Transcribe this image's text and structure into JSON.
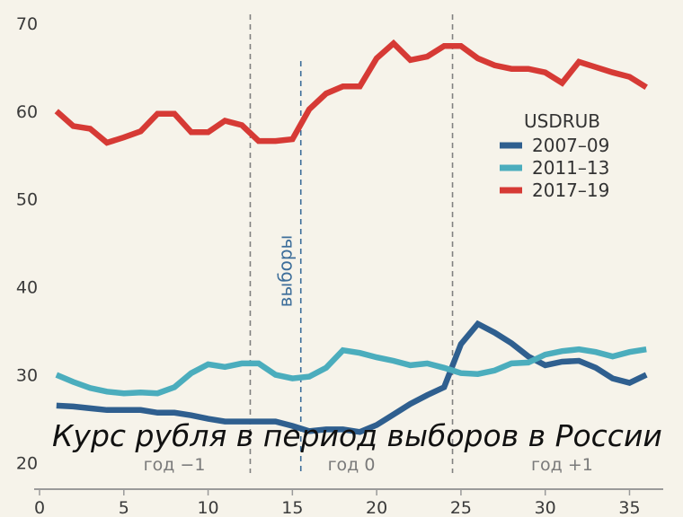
{
  "chart_data": {
    "type": "line",
    "title": "Курс рубля в период выборов в России",
    "legend_title": "USDRUB",
    "legend_position": "right",
    "grid": false,
    "xlim": [
      0,
      37
    ],
    "ylim": [
      17,
      71
    ],
    "x_ticks": [
      0,
      5,
      10,
      15,
      20,
      25,
      30,
      35
    ],
    "y_ticks": [
      20,
      30,
      40,
      50,
      60,
      70
    ],
    "vlines": [
      {
        "x": 12.5,
        "label": ""
      },
      {
        "x": 15.5,
        "label": "выборы"
      },
      {
        "x": 24.5,
        "label": ""
      }
    ],
    "period_labels": [
      {
        "x": 8,
        "text": "год −1"
      },
      {
        "x": 18.5,
        "text": "год 0"
      },
      {
        "x": 31,
        "text": "год +1"
      }
    ],
    "x": [
      1,
      2,
      3,
      4,
      5,
      6,
      7,
      8,
      9,
      10,
      11,
      12,
      13,
      14,
      15,
      16,
      17,
      18,
      19,
      20,
      21,
      22,
      23,
      24,
      25,
      26,
      27,
      28,
      29,
      30,
      31,
      32,
      33,
      34,
      35,
      36
    ],
    "series": [
      {
        "name": "2007–09",
        "color": "#2f5f8f",
        "values": [
          26.5,
          26.4,
          26.2,
          26.0,
          26.0,
          26.0,
          25.7,
          25.7,
          25.4,
          25.0,
          24.7,
          24.7,
          24.7,
          24.7,
          24.2,
          23.6,
          23.8,
          23.8,
          23.5,
          24.3,
          25.5,
          26.7,
          27.7,
          28.6,
          33.5,
          35.8,
          34.8,
          33.6,
          32.1,
          31.1,
          31.5,
          31.6,
          30.8,
          29.6,
          29.1,
          30.0
        ]
      },
      {
        "name": "2011–13",
        "color": "#4badbd",
        "values": [
          30.0,
          29.2,
          28.5,
          28.1,
          27.9,
          28.0,
          27.9,
          28.6,
          30.2,
          31.2,
          30.9,
          31.3,
          31.3,
          30.0,
          29.6,
          29.8,
          30.8,
          32.8,
          32.5,
          32.0,
          31.6,
          31.1,
          31.3,
          30.8,
          30.2,
          30.1,
          30.5,
          31.3,
          31.4,
          32.3,
          32.7,
          32.9,
          32.6,
          32.1,
          32.6,
          32.9
        ]
      },
      {
        "name": "2017–19",
        "color": "#d63a35",
        "values": [
          60.0,
          58.3,
          58.0,
          56.4,
          57.0,
          57.7,
          59.7,
          59.7,
          57.6,
          57.6,
          58.9,
          58.4,
          56.6,
          56.6,
          56.8,
          60.2,
          62.0,
          62.8,
          62.8,
          66.0,
          67.7,
          65.8,
          66.2,
          67.4,
          67.4,
          66.0,
          65.2,
          64.8,
          64.8,
          64.4,
          63.2,
          65.6,
          65.0,
          64.4,
          63.9,
          62.7
        ]
      }
    ]
  },
  "colors": {
    "background": "#f6f3ea",
    "axis": "#9a9a9a",
    "dashed": "#808080",
    "vlabel": "#3d6e9a"
  }
}
